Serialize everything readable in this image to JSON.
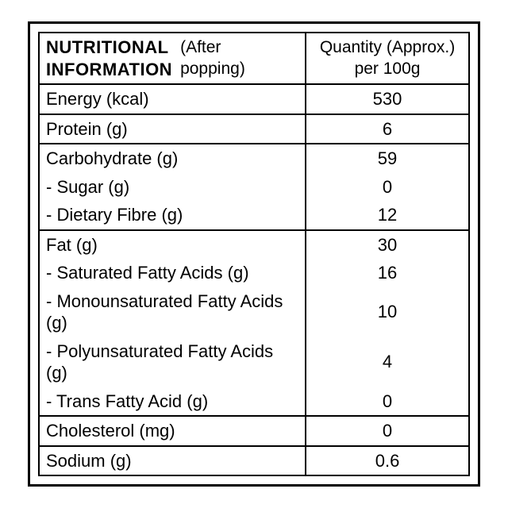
{
  "table": {
    "type": "table",
    "header": {
      "title_line1": "NUTRITIONAL",
      "title_line2": "INFORMATION",
      "sub_line1": "(After",
      "sub_line2": "popping)",
      "right_line1": "Quantity (Approx.)",
      "right_line2": "per 100g"
    },
    "rows": [
      {
        "label": "Energy (kcal)",
        "value": "530"
      },
      {
        "label": "Protein (g)",
        "value": "6"
      },
      {
        "label": "Carbohydrate (g)",
        "value": "59"
      },
      {
        "label": "- Sugar (g)",
        "value": "0"
      },
      {
        "label": "- Dietary Fibre (g)",
        "value": "12"
      },
      {
        "label": "Fat (g)",
        "value": "30"
      },
      {
        "label": "- Saturated Fatty Acids (g)",
        "value": "16"
      },
      {
        "label": "- Monounsaturated Fatty Acids (g)",
        "value": "10"
      },
      {
        "label": "- Polyunsaturated Fatty Acids (g)",
        "value": "4"
      },
      {
        "label": "- Trans Fatty Acid (g)",
        "value": "0"
      },
      {
        "label": "Cholesterol (mg)",
        "value": "0"
      },
      {
        "label": "Sodium (g)",
        "value": "0.6"
      }
    ],
    "colors": {
      "border": "#000000",
      "background": "#ffffff",
      "text": "#000000"
    },
    "font_size_pt": 17,
    "header_font_weight": 700
  }
}
